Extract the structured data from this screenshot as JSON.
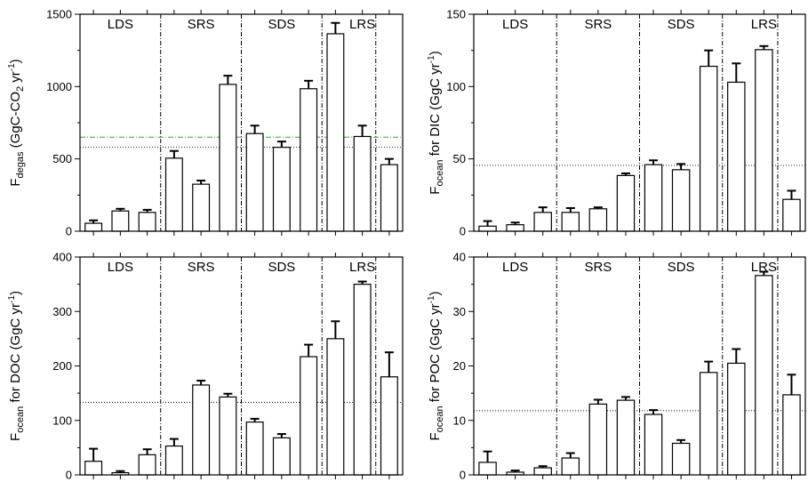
{
  "chart_data": [
    {
      "id": "panel-a",
      "type": "bar",
      "ylabel": {
        "main": "F",
        "sub": "degas",
        "rest": " (GgC-CO",
        "sub2": "2",
        "rest2": " yr",
        "sup": "-1",
        "end": ")"
      },
      "ylim": [
        0,
        1500
      ],
      "yticks": [
        0,
        500,
        1000,
        1500
      ],
      "groups": [
        "LDS",
        "SRS",
        "SDS",
        "LRS"
      ],
      "values": [
        55,
        140,
        130,
        505,
        325,
        1015,
        675,
        580,
        985,
        1365,
        655,
        460
      ],
      "errors": [
        20,
        15,
        18,
        50,
        25,
        60,
        55,
        40,
        55,
        75,
        75,
        40
      ],
      "ref_lines": [
        {
          "value": 580,
          "color": "#222222",
          "style": "dotted"
        },
        {
          "value": 650,
          "color": "#33aa33",
          "style": "dashdot"
        }
      ]
    },
    {
      "id": "panel-b",
      "type": "bar",
      "ylabel": {
        "main": "F",
        "sub": "ocean",
        "rest": " for DIC (GgC yr",
        "sup": "-1",
        "end": ")"
      },
      "ylim": [
        0,
        150
      ],
      "yticks": [
        0,
        50,
        100,
        150
      ],
      "groups": [
        "LDS",
        "SRS",
        "SDS",
        "LRS"
      ],
      "values": [
        3.5,
        4.5,
        13,
        13,
        15.5,
        38.5,
        46,
        42.5,
        114,
        103,
        125.5,
        22
      ],
      "errors": [
        3.5,
        1.5,
        3.5,
        3,
        1,
        1.5,
        3,
        4,
        11,
        13,
        2.5,
        6
      ],
      "ref_lines": [
        {
          "value": 45.5,
          "color": "#222222",
          "style": "dotted"
        }
      ]
    },
    {
      "id": "panel-c",
      "type": "bar",
      "ylabel": {
        "main": "F",
        "sub": "ocean",
        "rest": " for DOC (GgC yr",
        "sup": "-1",
        "end": ")"
      },
      "ylim": [
        0,
        400
      ],
      "yticks": [
        0,
        100,
        200,
        300,
        400
      ],
      "groups": [
        "LDS",
        "SRS",
        "SDS",
        "LRS"
      ],
      "values": [
        25,
        4,
        37,
        53,
        165,
        143,
        97,
        68,
        217,
        250,
        350,
        180
      ],
      "errors": [
        23,
        3,
        10,
        13,
        8,
        6,
        6,
        7,
        22,
        32,
        5,
        45
      ],
      "ref_lines": [
        {
          "value": 133,
          "color": "#222222",
          "style": "dotted"
        }
      ]
    },
    {
      "id": "panel-d",
      "type": "bar",
      "ylabel": {
        "main": "F",
        "sub": "ocean",
        "rest": " for POC (GgC yr",
        "sup": "-1",
        "end": ")"
      },
      "ylim": [
        0,
        40
      ],
      "yticks": [
        0,
        10,
        20,
        30,
        40
      ],
      "groups": [
        "LDS",
        "SRS",
        "SDS",
        "LRS"
      ],
      "values": [
        2.3,
        0.5,
        1.3,
        3.1,
        13,
        13.7,
        11.1,
        5.8,
        18.8,
        20.5,
        36.6,
        14.7
      ],
      "errors": [
        2,
        0.3,
        0.3,
        0.9,
        0.8,
        0.6,
        0.8,
        0.6,
        2,
        2.6,
        0.7,
        3.7
      ],
      "ref_lines": [
        {
          "value": 11.8,
          "color": "#222222",
          "style": "dotted"
        }
      ]
    }
  ]
}
